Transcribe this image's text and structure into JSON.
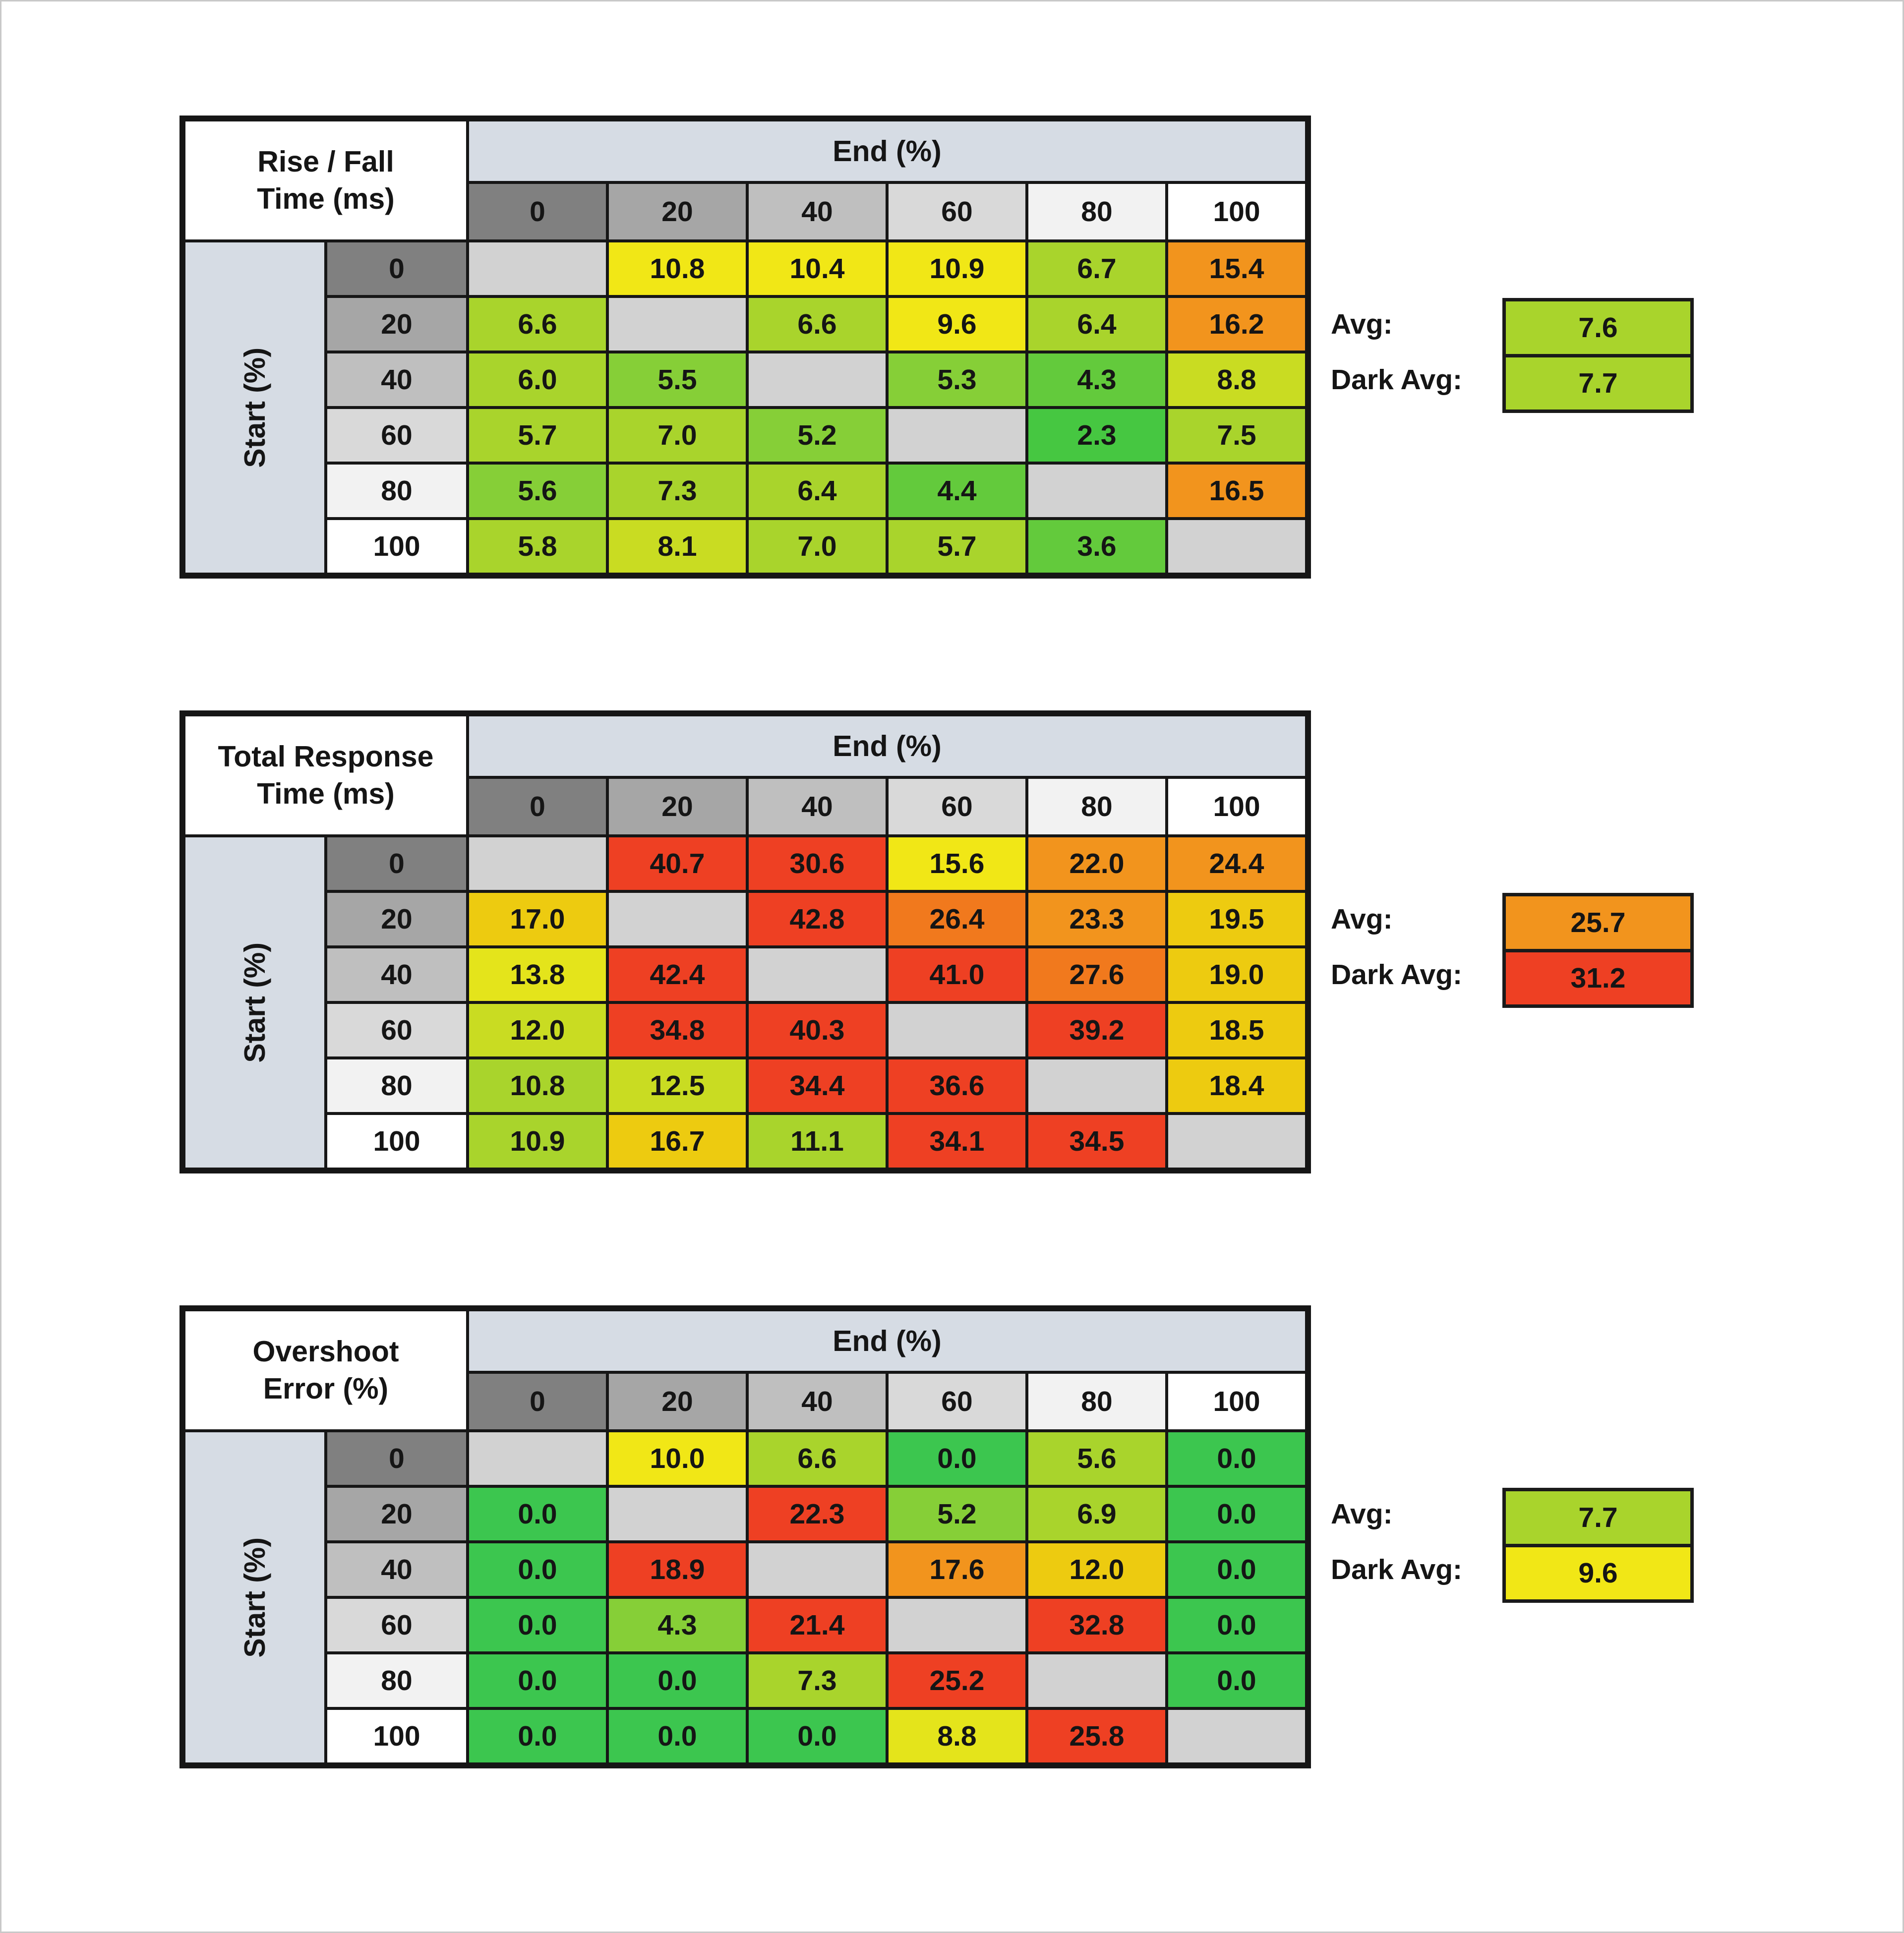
{
  "palette": {
    "na": "#D2D2D2",
    "g0": "#3CC64F",
    "g1": "#46C741",
    "g2": "#63CA3C",
    "g3": "#86CF37",
    "yg": "#A9D42C",
    "yg2": "#C9DC22",
    "y2": "#E4E41B",
    "y": "#F1E716",
    "gold": "#EDCB10",
    "o": "#F2941D",
    "o2": "#F1791D",
    "r": "#EE4023",
    "band": "#D6DCE4",
    "header_grays": [
      "#808080",
      "#A6A6A6",
      "#BFBFBF",
      "#D9D9D9",
      "#F2F2F2",
      "#FFFFFF"
    ],
    "grid_line": "#161616",
    "page_bg": "#FFFFFF"
  },
  "chart_data": [
    {
      "type": "heatmap",
      "title_lines": [
        "Rise / Fall",
        "Time (ms)"
      ],
      "col_axis_label": "End (%)",
      "row_axis_label": "Start (%)",
      "columns": [
        "0",
        "20",
        "40",
        "60",
        "80",
        "100"
      ],
      "rows": [
        "0",
        "20",
        "40",
        "60",
        "80",
        "100"
      ],
      "values": [
        [
          "",
          "10.8",
          "10.4",
          "10.9",
          "6.7",
          "15.4"
        ],
        [
          "6.6",
          "",
          "6.6",
          "9.6",
          "6.4",
          "16.2"
        ],
        [
          "6.0",
          "5.5",
          "",
          "5.3",
          "4.3",
          "8.8"
        ],
        [
          "5.7",
          "7.0",
          "5.2",
          "",
          "2.3",
          "7.5"
        ],
        [
          "5.6",
          "7.3",
          "6.4",
          "4.4",
          "",
          "16.5"
        ],
        [
          "5.8",
          "8.1",
          "7.0",
          "5.7",
          "3.6",
          ""
        ]
      ],
      "colors": [
        [
          "na",
          "y",
          "y",
          "y",
          "yg",
          "o"
        ],
        [
          "yg",
          "na",
          "yg",
          "y",
          "yg",
          "o"
        ],
        [
          "yg",
          "g3",
          "na",
          "g3",
          "g2",
          "yg2"
        ],
        [
          "yg",
          "yg",
          "g3",
          "na",
          "g1",
          "yg"
        ],
        [
          "g3",
          "yg",
          "yg",
          "g2",
          "na",
          "o"
        ],
        [
          "yg",
          "yg2",
          "yg",
          "yg",
          "g2",
          "na"
        ]
      ],
      "avg_label": "Avg:",
      "avg_value": "7.6",
      "avg_color": "yg",
      "dark_avg_label": "Dark Avg:",
      "dark_avg_value": "7.7",
      "dark_avg_color": "yg"
    },
    {
      "type": "heatmap",
      "title_lines": [
        "Total Response",
        "Time (ms)"
      ],
      "col_axis_label": "End (%)",
      "row_axis_label": "Start (%)",
      "columns": [
        "0",
        "20",
        "40",
        "60",
        "80",
        "100"
      ],
      "rows": [
        "0",
        "20",
        "40",
        "60",
        "80",
        "100"
      ],
      "values": [
        [
          "",
          "40.7",
          "30.6",
          "15.6",
          "22.0",
          "24.4"
        ],
        [
          "17.0",
          "",
          "42.8",
          "26.4",
          "23.3",
          "19.5"
        ],
        [
          "13.8",
          "42.4",
          "",
          "41.0",
          "27.6",
          "19.0"
        ],
        [
          "12.0",
          "34.8",
          "40.3",
          "",
          "39.2",
          "18.5"
        ],
        [
          "10.8",
          "12.5",
          "34.4",
          "36.6",
          "",
          "18.4"
        ],
        [
          "10.9",
          "16.7",
          "11.1",
          "34.1",
          "34.5",
          ""
        ]
      ],
      "colors": [
        [
          "na",
          "r",
          "r",
          "y",
          "o",
          "o"
        ],
        [
          "gold",
          "na",
          "r",
          "o2",
          "o",
          "gold"
        ],
        [
          "y2",
          "r",
          "na",
          "r",
          "o2",
          "gold"
        ],
        [
          "yg2",
          "r",
          "r",
          "na",
          "r",
          "gold"
        ],
        [
          "yg",
          "yg2",
          "r",
          "r",
          "na",
          "gold"
        ],
        [
          "yg",
          "gold",
          "yg",
          "r",
          "r",
          "na"
        ]
      ],
      "avg_label": "Avg:",
      "avg_value": "25.7",
      "avg_color": "o",
      "dark_avg_label": "Dark Avg:",
      "dark_avg_value": "31.2",
      "dark_avg_color": "r"
    },
    {
      "type": "heatmap",
      "title_lines": [
        "Overshoot",
        "Error (%)"
      ],
      "col_axis_label": "End (%)",
      "row_axis_label": "Start (%)",
      "columns": [
        "0",
        "20",
        "40",
        "60",
        "80",
        "100"
      ],
      "rows": [
        "0",
        "20",
        "40",
        "60",
        "80",
        "100"
      ],
      "values": [
        [
          "",
          "10.0",
          "6.6",
          "0.0",
          "5.6",
          "0.0"
        ],
        [
          "0.0",
          "",
          "22.3",
          "5.2",
          "6.9",
          "0.0"
        ],
        [
          "0.0",
          "18.9",
          "",
          "17.6",
          "12.0",
          "0.0"
        ],
        [
          "0.0",
          "4.3",
          "21.4",
          "",
          "32.8",
          "0.0"
        ],
        [
          "0.0",
          "0.0",
          "7.3",
          "25.2",
          "",
          "0.0"
        ],
        [
          "0.0",
          "0.0",
          "0.0",
          "8.8",
          "25.8",
          ""
        ]
      ],
      "colors": [
        [
          "na",
          "y",
          "yg",
          "g0",
          "yg",
          "g0"
        ],
        [
          "g0",
          "na",
          "r",
          "g3",
          "yg",
          "g0"
        ],
        [
          "g0",
          "r",
          "na",
          "o",
          "gold",
          "g0"
        ],
        [
          "g0",
          "g3",
          "r",
          "na",
          "r",
          "g0"
        ],
        [
          "g0",
          "g0",
          "yg",
          "r",
          "na",
          "g0"
        ],
        [
          "g0",
          "g0",
          "g0",
          "y2",
          "r",
          "na"
        ]
      ],
      "avg_label": "Avg:",
      "avg_value": "7.7",
      "avg_color": "yg",
      "dark_avg_label": "Dark Avg:",
      "dark_avg_value": "9.6",
      "dark_avg_color": "y"
    }
  ],
  "layout_tops": [
    "233",
    "1433",
    "2633"
  ]
}
